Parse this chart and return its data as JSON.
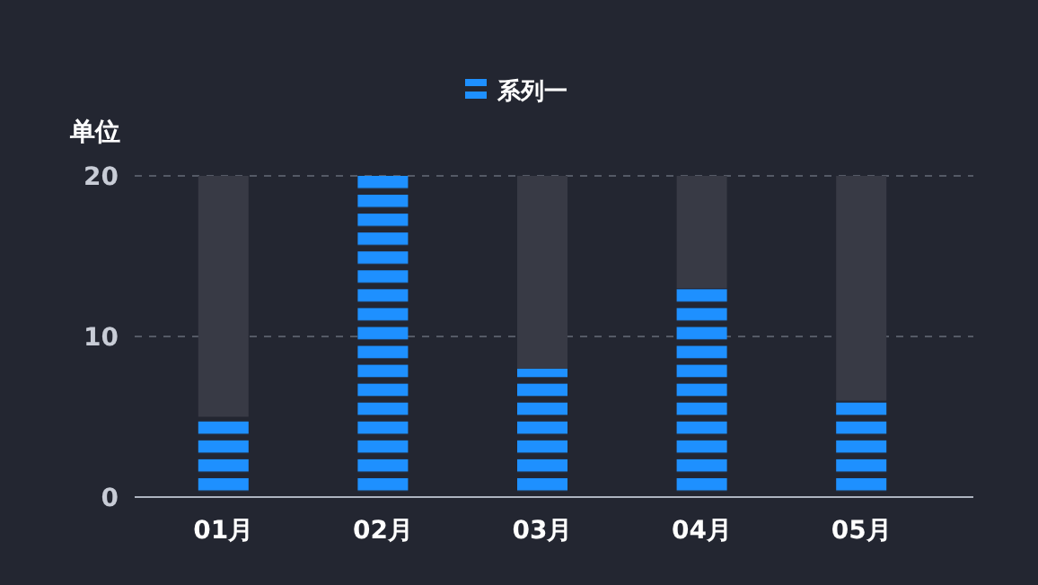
{
  "chart_data": {
    "type": "bar",
    "ylabel": "单位",
    "categories": [
      "01月",
      "02月",
      "03月",
      "04月",
      "05月"
    ],
    "stacked": true,
    "series": [
      {
        "name": "系列一",
        "color": "#1e90ff",
        "values": [
          5,
          20,
          8,
          13,
          6
        ]
      },
      {
        "color": "#383a45",
        "values": [
          15,
          0,
          12,
          7,
          14
        ]
      }
    ],
    "ylim": [
      0,
      20
    ],
    "yticks": [
      0,
      10,
      20
    ],
    "grid": "y",
    "legend": "top"
  }
}
